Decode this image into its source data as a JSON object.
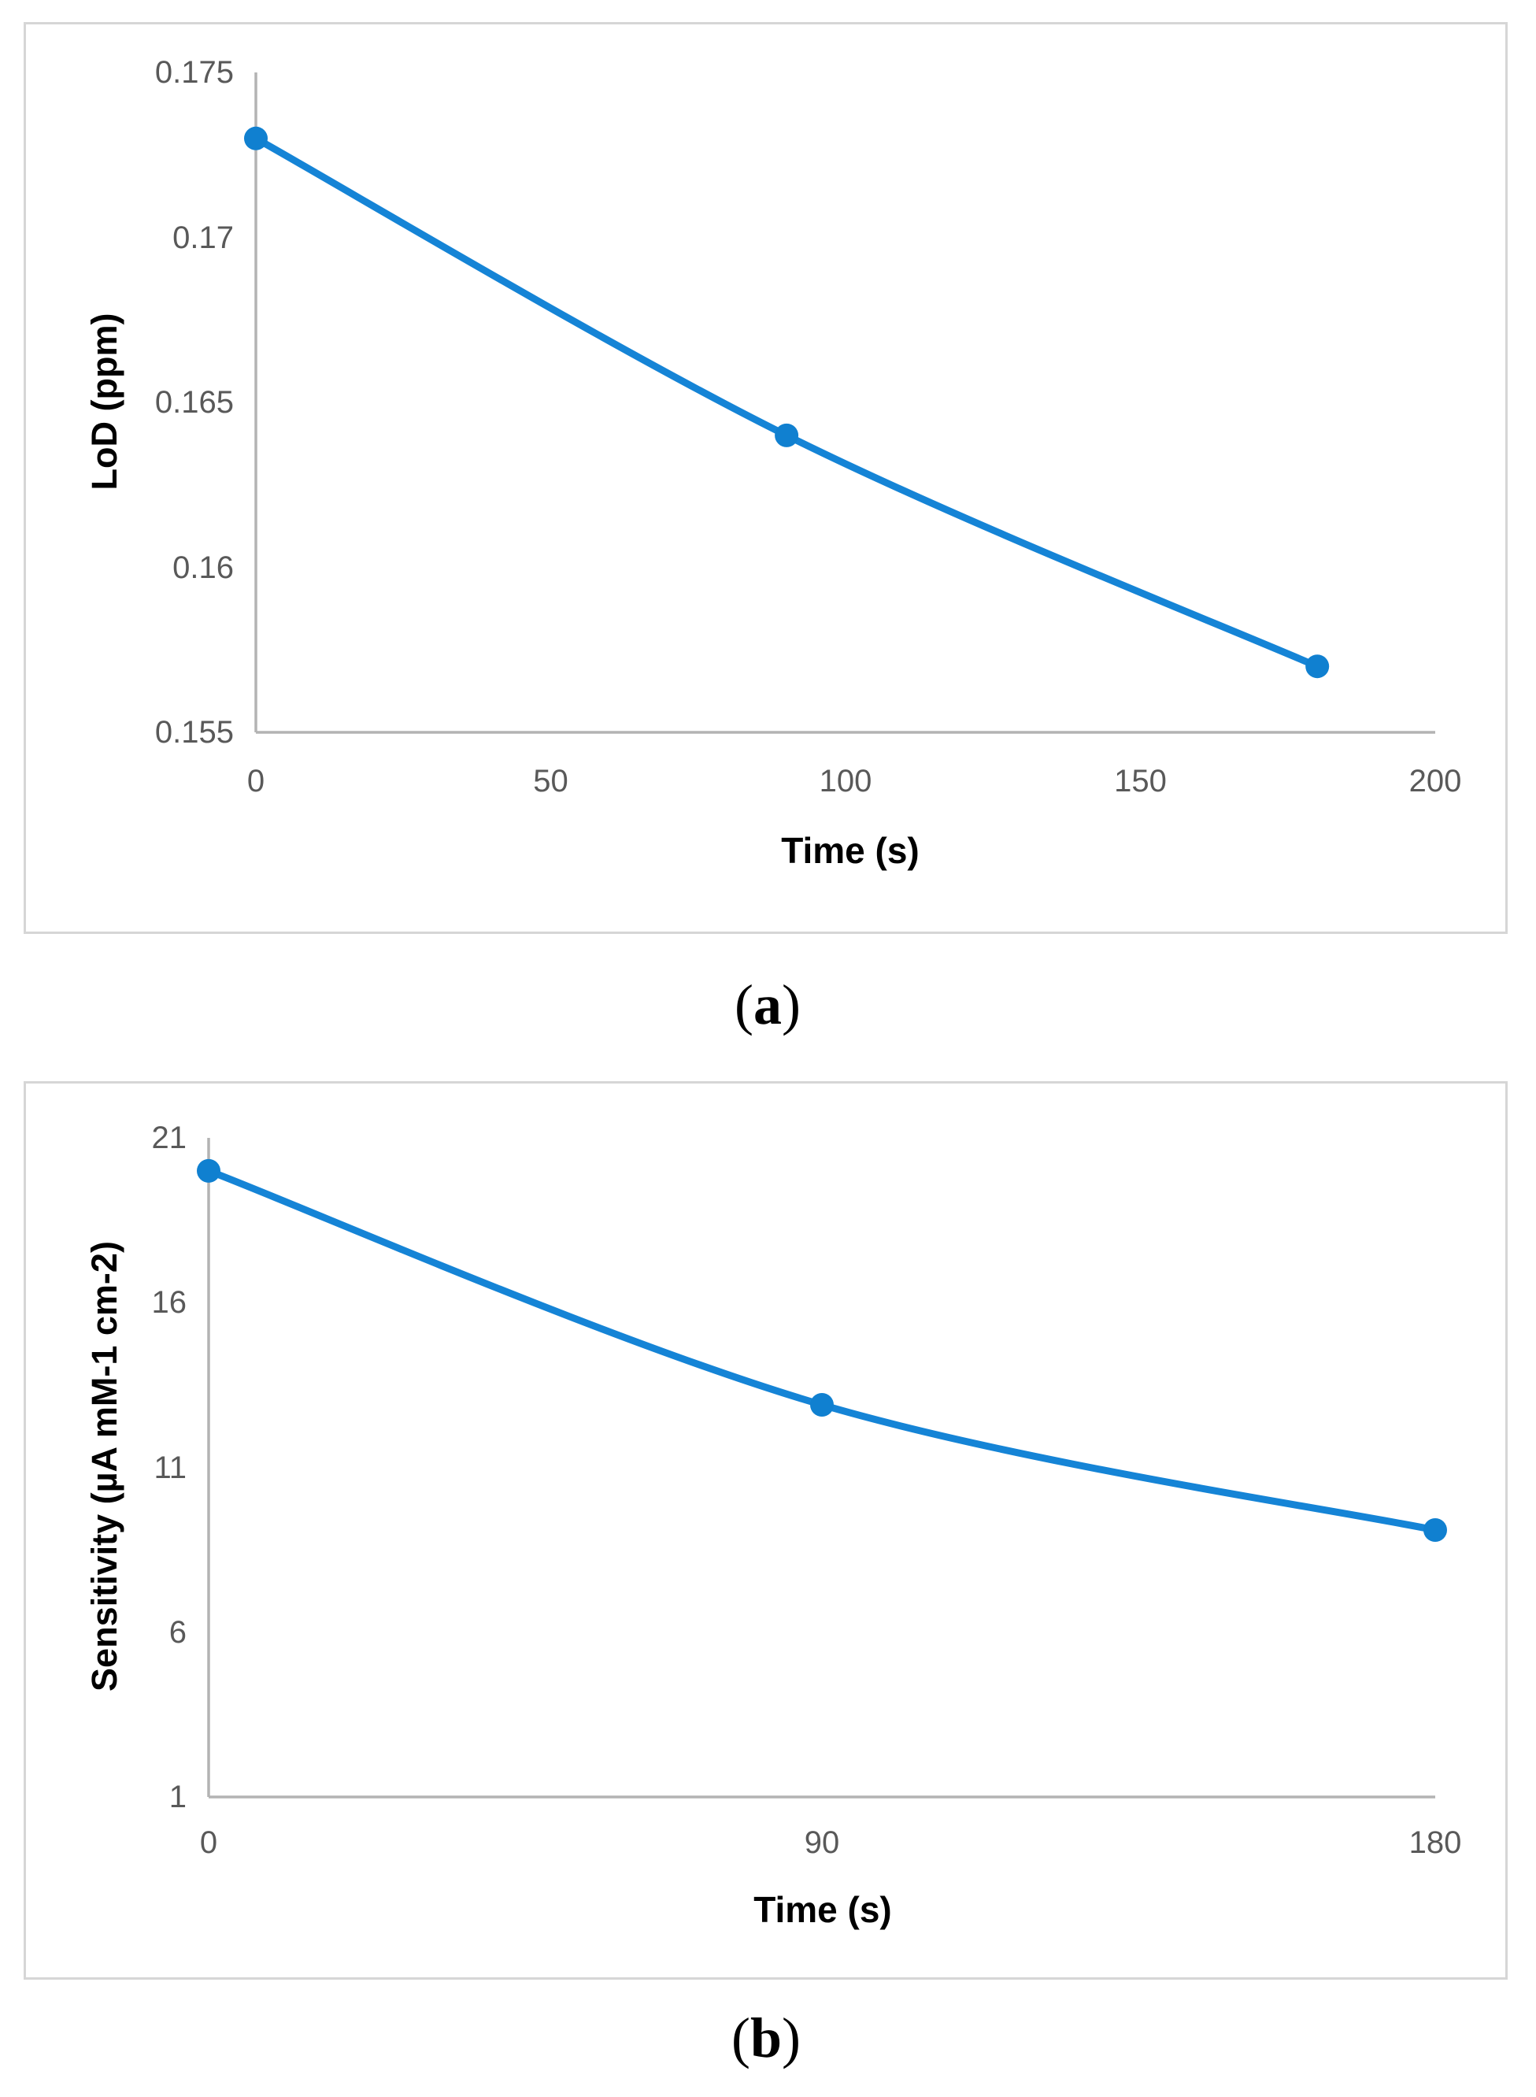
{
  "figure": {
    "background": "#ffffff",
    "description": "Two stacked line charts labelled (a) and (b)"
  },
  "colors": {
    "series_line": "#1584d6",
    "marker_fill": "#1080d0",
    "axis_line": "#b3b3b3",
    "tick_text": "#595959",
    "axis_title_text": "#000000",
    "panel_border": "#d6d6d6"
  },
  "captions": {
    "a": {
      "open": "(",
      "label": "a",
      "close": ")"
    },
    "b": {
      "open": "(",
      "label": "b",
      "close": ")"
    }
  },
  "chart_data": [
    {
      "type": "line",
      "title": "",
      "xlabel": "Time (s)",
      "ylabel": "LoD (ppm)",
      "x": [
        0,
        90,
        180
      ],
      "values": [
        0.173,
        0.164,
        0.157
      ],
      "x_ticks": [
        0,
        50,
        100,
        150,
        200
      ],
      "x_tick_labels": [
        "0",
        "50",
        "100",
        "150",
        "200"
      ],
      "y_ticks": [
        0.175,
        0.17,
        0.165,
        0.16,
        0.155
      ],
      "y_tick_labels": [
        "0.175",
        "0.17",
        "0.165",
        "0.16",
        "0.155"
      ],
      "xlim": [
        0,
        200
      ],
      "ylim": [
        0.155,
        0.175
      ],
      "grid": false,
      "legend": null,
      "marker": "circle",
      "smooth": true,
      "caption": "(a)"
    },
    {
      "type": "line",
      "title": "",
      "xlabel": "Time (s)",
      "ylabel": "Sensitivity (µA mM-1 cm-2)",
      "x": [
        0,
        90,
        180
      ],
      "values": [
        20,
        12.9,
        9.1
      ],
      "x_ticks": [
        0,
        90,
        180
      ],
      "x_tick_labels": [
        "0",
        "90",
        "180"
      ],
      "y_ticks": [
        21,
        16,
        11,
        6,
        1
      ],
      "y_tick_labels": [
        "21",
        "16",
        "11",
        "6",
        "1"
      ],
      "xlim": [
        0,
        180
      ],
      "ylim": [
        1,
        21
      ],
      "grid": false,
      "legend": null,
      "marker": "circle",
      "smooth": true,
      "caption": "(b)"
    }
  ]
}
